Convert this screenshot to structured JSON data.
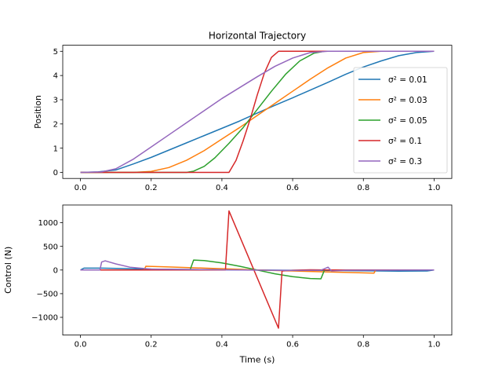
{
  "chart_data": [
    {
      "type": "line",
      "title": "Horizontal Trajectory",
      "xlabel": "",
      "ylabel": "Position",
      "xlim": [
        -0.05,
        1.05
      ],
      "ylim": [
        -0.25,
        5.25
      ],
      "xticks": [
        0.0,
        0.2,
        0.4,
        0.6,
        0.8,
        1.0
      ],
      "xtick_labels": [
        "0.0",
        "0.2",
        "0.4",
        "0.6",
        "0.8",
        "1.0"
      ],
      "yticks": [
        0,
        1,
        2,
        3,
        4,
        5
      ],
      "ytick_labels": [
        "0",
        "1",
        "2",
        "3",
        "4",
        "5"
      ],
      "grid": false,
      "legend": "right",
      "series": [
        {
          "name": "σ² = 0.01",
          "color": "#1f77b4",
          "x": [
            0,
            0.05,
            0.1,
            0.15,
            0.2,
            0.25,
            0.3,
            0.35,
            0.4,
            0.45,
            0.5,
            0.55,
            0.6,
            0.65,
            0.7,
            0.75,
            0.8,
            0.85,
            0.9,
            0.95,
            1.0
          ],
          "y": [
            0,
            0.02,
            0.1,
            0.35,
            0.62,
            0.92,
            1.22,
            1.52,
            1.82,
            2.12,
            2.45,
            2.77,
            3.08,
            3.4,
            3.72,
            4.05,
            4.35,
            4.6,
            4.82,
            4.95,
            5.0
          ]
        },
        {
          "name": "σ² = 0.03",
          "color": "#ff7f0e",
          "x": [
            0,
            0.15,
            0.2,
            0.25,
            0.3,
            0.35,
            0.4,
            0.45,
            0.5,
            0.55,
            0.6,
            0.65,
            0.7,
            0.75,
            0.8,
            0.85,
            1.0
          ],
          "y": [
            0,
            0,
            0.04,
            0.2,
            0.5,
            0.9,
            1.38,
            1.85,
            2.35,
            2.85,
            3.35,
            3.85,
            4.32,
            4.72,
            4.95,
            5.0,
            5.0
          ]
        },
        {
          "name": "σ² = 0.05",
          "color": "#2ca02c",
          "x": [
            0,
            0.3,
            0.32,
            0.35,
            0.38,
            0.42,
            0.46,
            0.5,
            0.54,
            0.58,
            0.62,
            0.66,
            0.69,
            1.0
          ],
          "y": [
            0,
            0,
            0.05,
            0.25,
            0.6,
            1.2,
            1.85,
            2.6,
            3.35,
            4.05,
            4.6,
            4.92,
            5.0,
            5.0
          ]
        },
        {
          "name": "σ² = 0.1",
          "color": "#d62728",
          "x": [
            0,
            0.42,
            0.44,
            0.46,
            0.48,
            0.5,
            0.52,
            0.54,
            0.56,
            1.0
          ],
          "y": [
            0,
            0,
            0.5,
            1.3,
            2.2,
            3.2,
            4.1,
            4.75,
            5.0,
            5.0
          ]
        },
        {
          "name": "σ² = 0.3",
          "color": "#9467bd",
          "x": [
            0,
            0.06,
            0.1,
            0.15,
            0.2,
            0.25,
            0.3,
            0.35,
            0.4,
            0.45,
            0.5,
            0.55,
            0.6,
            0.65,
            0.7,
            1.0
          ],
          "y": [
            0,
            0.02,
            0.15,
            0.55,
            1.05,
            1.55,
            2.05,
            2.55,
            3.05,
            3.5,
            3.95,
            4.38,
            4.72,
            4.95,
            5.0,
            5.0
          ]
        }
      ]
    },
    {
      "type": "line",
      "title": "",
      "xlabel": "Time (s)",
      "ylabel": "Control (N)",
      "xlim": [
        -0.05,
        1.05
      ],
      "ylim": [
        -1375,
        1375
      ],
      "xticks": [
        0.0,
        0.2,
        0.4,
        0.6,
        0.8,
        1.0
      ],
      "xtick_labels": [
        "0.0",
        "0.2",
        "0.4",
        "0.6",
        "0.8",
        "1.0"
      ],
      "yticks": [
        -1000,
        -500,
        0,
        500,
        1000
      ],
      "ytick_labels": [
        "−1000",
        "−500",
        "0",
        "500",
        "1000"
      ],
      "grid": false,
      "series": [
        {
          "name": "σ² = 0.01",
          "color": "#1f77b4",
          "x": [
            0,
            0.01,
            0.06,
            0.2,
            0.4,
            0.6,
            0.8,
            0.9,
            0.98,
            1.0
          ],
          "y": [
            0,
            40,
            40,
            20,
            5,
            -5,
            -15,
            -25,
            -20,
            0
          ]
        },
        {
          "name": "σ² = 0.03",
          "color": "#ff7f0e",
          "x": [
            0,
            0.18,
            0.185,
            0.25,
            0.35,
            0.45,
            0.5,
            0.6,
            0.7,
            0.83,
            0.835,
            1.0
          ],
          "y": [
            0,
            0,
            80,
            65,
            40,
            15,
            0,
            -20,
            -40,
            -65,
            0,
            0
          ]
        },
        {
          "name": "σ² = 0.05",
          "color": "#2ca02c",
          "x": [
            0,
            0.31,
            0.32,
            0.35,
            0.4,
            0.45,
            0.5,
            0.55,
            0.6,
            0.65,
            0.68,
            0.69,
            1.0
          ],
          "y": [
            0,
            0,
            210,
            200,
            150,
            80,
            0,
            -80,
            -140,
            -180,
            -185,
            0,
            0
          ]
        },
        {
          "name": "σ² = 0.1",
          "color": "#d62728",
          "x": [
            0,
            0.41,
            0.42,
            0.56,
            0.57,
            0.6,
            0.65,
            0.7,
            1.0
          ],
          "y": [
            0,
            0,
            1250,
            -1230,
            -20,
            -5,
            5,
            0,
            0
          ]
        },
        {
          "name": "σ² = 0.3",
          "color": "#9467bd",
          "x": [
            0,
            0.055,
            0.06,
            0.07,
            0.1,
            0.14,
            0.2,
            0.4,
            0.6,
            0.68,
            0.7,
            0.71,
            0.75,
            1.0
          ],
          "y": [
            0,
            0,
            170,
            195,
            130,
            60,
            20,
            5,
            -10,
            -5,
            60,
            -20,
            -5,
            0
          ]
        }
      ]
    }
  ]
}
